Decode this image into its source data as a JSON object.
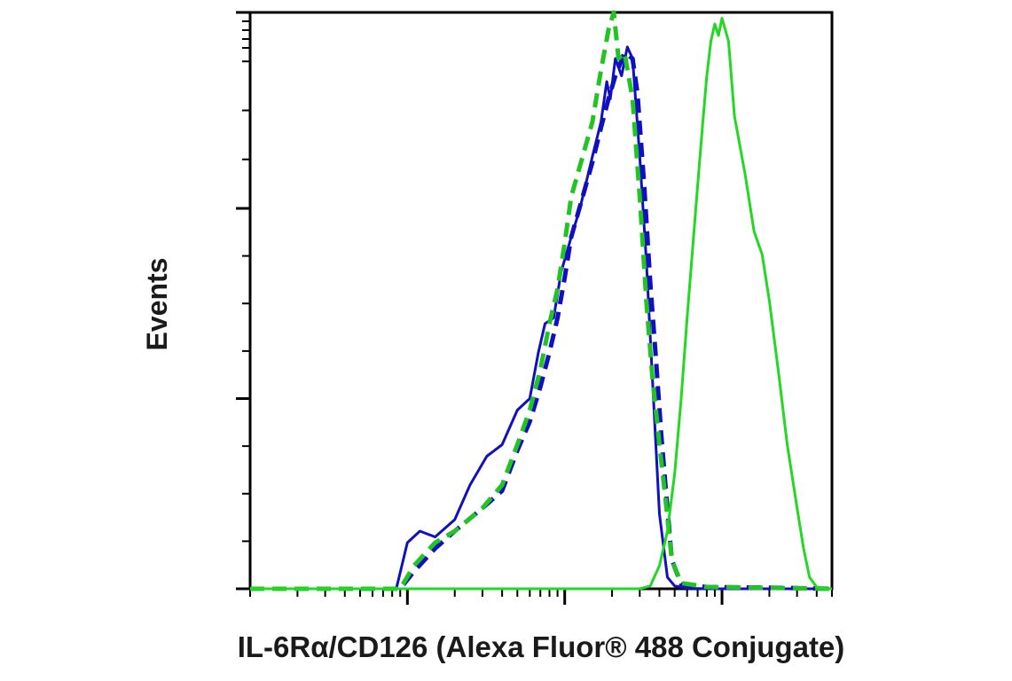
{
  "chart_data": {
    "type": "line",
    "title": "",
    "xlabel": "IL-6Rα/CD126 (Alexa Fluor® 488 Conjugate)",
    "ylabel": "Events",
    "x_scale": "log",
    "xlim": [
      0.1,
      500
    ],
    "ylim": [
      0,
      100
    ],
    "x_major_ticks": [
      1,
      10,
      100
    ],
    "y_major_ticks": [
      0,
      33,
      66,
      100
    ],
    "grid": false,
    "legend": "none",
    "series": [
      {
        "color": "#1010c0",
        "dash": "solid",
        "x": [
          0.1,
          0.5,
          0.85,
          1.0,
          1.2,
          1.5,
          2.0,
          2.5,
          3.2,
          4.0,
          5.0,
          6.0,
          6.8,
          7.5,
          8.5,
          9.5,
          11.0,
          12.5,
          15.0,
          17.0,
          18.5,
          19.5,
          21.0,
          23.0,
          25.0,
          27.0,
          30.0,
          33.0,
          36.0,
          40.0,
          45.0,
          50.0,
          60.0,
          80.0,
          500
        ],
        "y": [
          0,
          0,
          0,
          8,
          10,
          9,
          12,
          18,
          23,
          25,
          31,
          33,
          41,
          46,
          47,
          55,
          61,
          66,
          75,
          81,
          88,
          85,
          92,
          89,
          94,
          92,
          75,
          57,
          37,
          13,
          2,
          0.5,
          0.1,
          0,
          0
        ]
      },
      {
        "color": "#1010c0",
        "dash": "dashed",
        "x": [
          0.1,
          0.9,
          1.1,
          1.5,
          2.0,
          3.0,
          4.0,
          5.0,
          6.0,
          7.0,
          8.0,
          9.0,
          10.0,
          11.0,
          13.0,
          15.0,
          17.0,
          19.0,
          21.0,
          24.0,
          27.0,
          29.0,
          32.0,
          35.0,
          38.0,
          41.0,
          44.0,
          48.0,
          55.0,
          80.0,
          200.0,
          500
        ],
        "y": [
          0,
          0,
          3,
          7,
          10,
          14,
          17,
          24,
          29,
          35,
          41,
          47,
          54,
          61,
          68,
          74,
          80,
          85,
          89,
          93,
          92,
          86,
          70,
          53,
          40,
          27,
          17,
          5,
          0.8,
          0.3,
          0.2,
          0
        ]
      },
      {
        "color": "#22c422",
        "dash": "dashed",
        "x": [
          0.1,
          0.9,
          1.1,
          1.5,
          2.0,
          3.0,
          4.0,
          5.0,
          6.0,
          7.0,
          8.0,
          9.0,
          10.0,
          11.0,
          13.0,
          15.0,
          17.0,
          19.0,
          20.5,
          22.0,
          24.0,
          27.0,
          30.0,
          33.0,
          36.0,
          40.0,
          44.0,
          48.0,
          55.0,
          80.0,
          500
        ],
        "y": [
          0,
          0,
          4,
          8,
          10,
          14,
          18,
          25,
          31,
          38,
          46,
          52,
          60,
          68,
          75,
          81,
          90,
          97,
          100,
          92,
          93,
          85,
          68,
          50,
          37,
          25,
          15,
          5,
          1,
          0.3,
          0
        ]
      },
      {
        "color": "#22d822",
        "dash": "solid",
        "x": [
          0.1,
          30.0,
          35.0,
          40.0,
          45.0,
          50.0,
          55.0,
          60.0,
          65.0,
          70.0,
          75.0,
          80.0,
          85.0,
          90.0,
          95.0,
          100.0,
          110.0,
          120.0,
          140.0,
          160.0,
          180.0,
          200.0,
          230.0,
          260.0,
          300.0,
          330.0,
          360.0,
          400.0,
          450.0,
          500
        ],
        "y": [
          0,
          0,
          0.5,
          4,
          10,
          20,
          33,
          47,
          59,
          70,
          80,
          89,
          95,
          98,
          96,
          99,
          95,
          82,
          72,
          62,
          58,
          50,
          37,
          25,
          14,
          7,
          2,
          0.3,
          0,
          0
        ]
      }
    ]
  }
}
